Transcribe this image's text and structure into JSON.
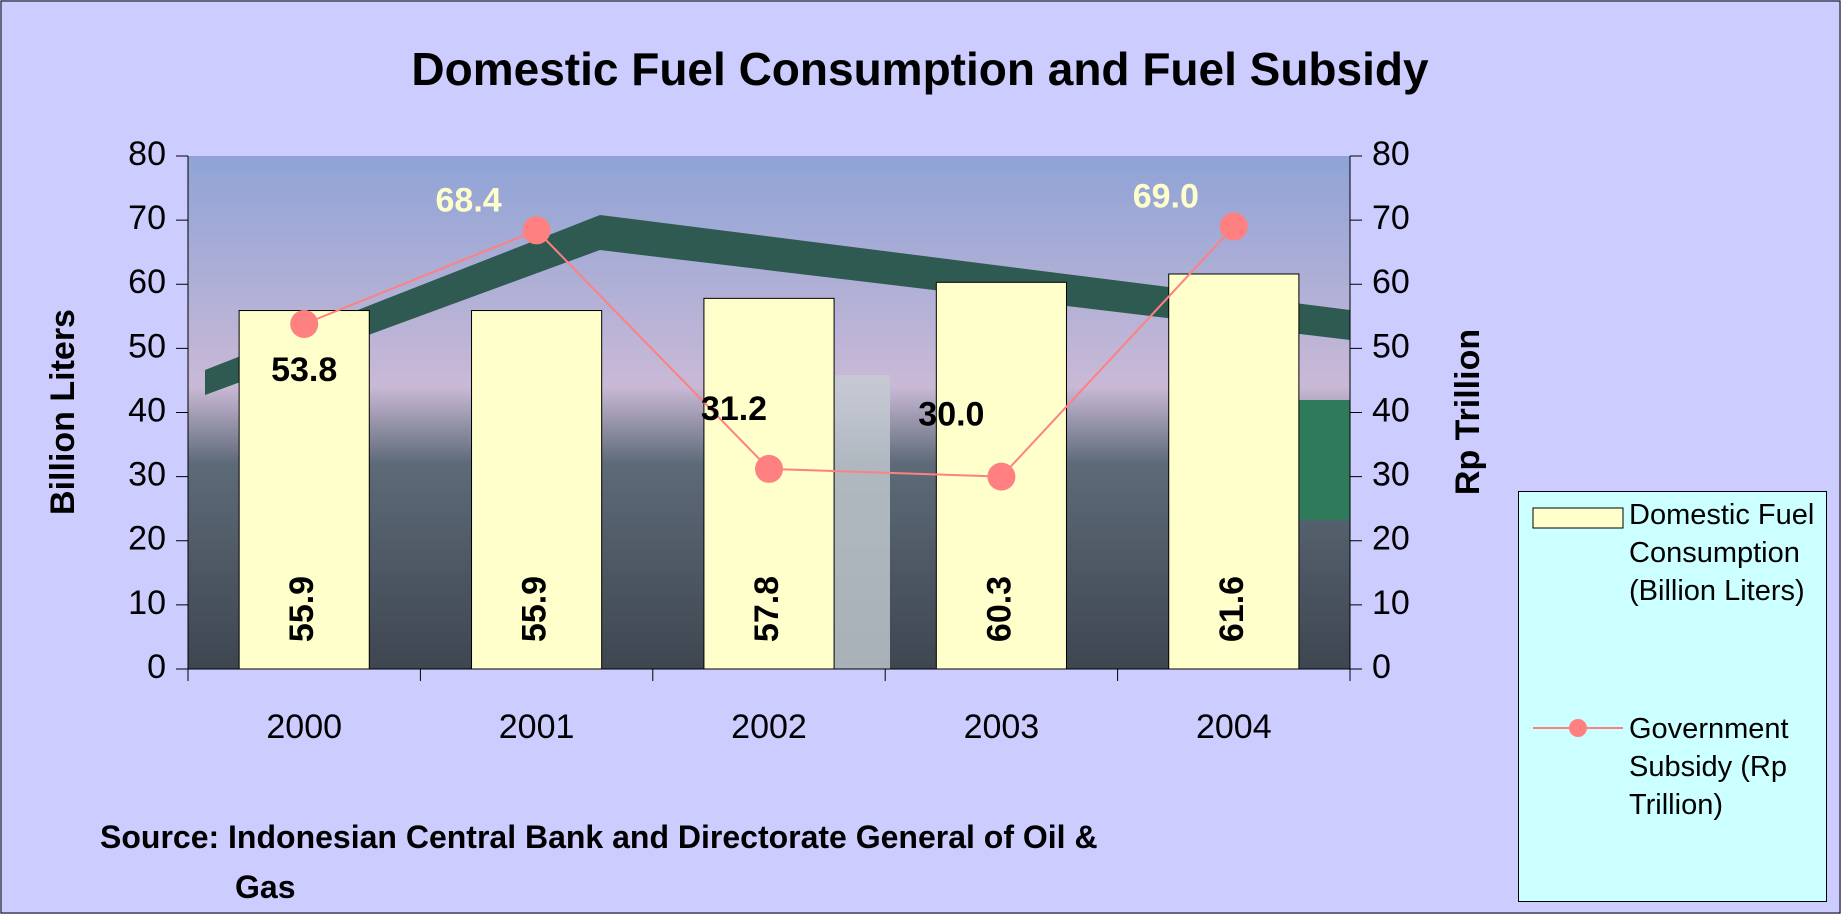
{
  "chart_data": {
    "type": "bar",
    "title": "Domestic Fuel Consumption and Fuel Subsidy",
    "categories": [
      "2000",
      "2001",
      "2002",
      "2003",
      "2004"
    ],
    "series": [
      {
        "name": "Domestic Fuel Consumption (Billion Liters)",
        "type": "bar",
        "color": "#ffffcc",
        "values": [
          55.9,
          55.9,
          57.8,
          60.3,
          61.6
        ]
      },
      {
        "name": "Government Subsidy (Rp Trillion)",
        "type": "line",
        "axis": "y2",
        "color": "#ff8080",
        "values": [
          53.8,
          68.4,
          31.2,
          30.0,
          69.0
        ],
        "value_labels": [
          "53.8",
          "68.4",
          "31.2",
          "30.0",
          "69.0"
        ]
      }
    ],
    "ylabel": "Billion Liters",
    "y2label": "Rp Trillion",
    "ylim": [
      0,
      80
    ],
    "yticks": [
      0,
      10,
      20,
      30,
      40,
      50,
      60,
      70,
      80
    ],
    "y2lim": [
      0,
      80
    ],
    "y2ticks": [
      0,
      10,
      20,
      30,
      40,
      50,
      60,
      70,
      80
    ],
    "legend": "right",
    "source": "Source: Indonesian Central Bank and Directorate General of Oil & Gas"
  }
}
